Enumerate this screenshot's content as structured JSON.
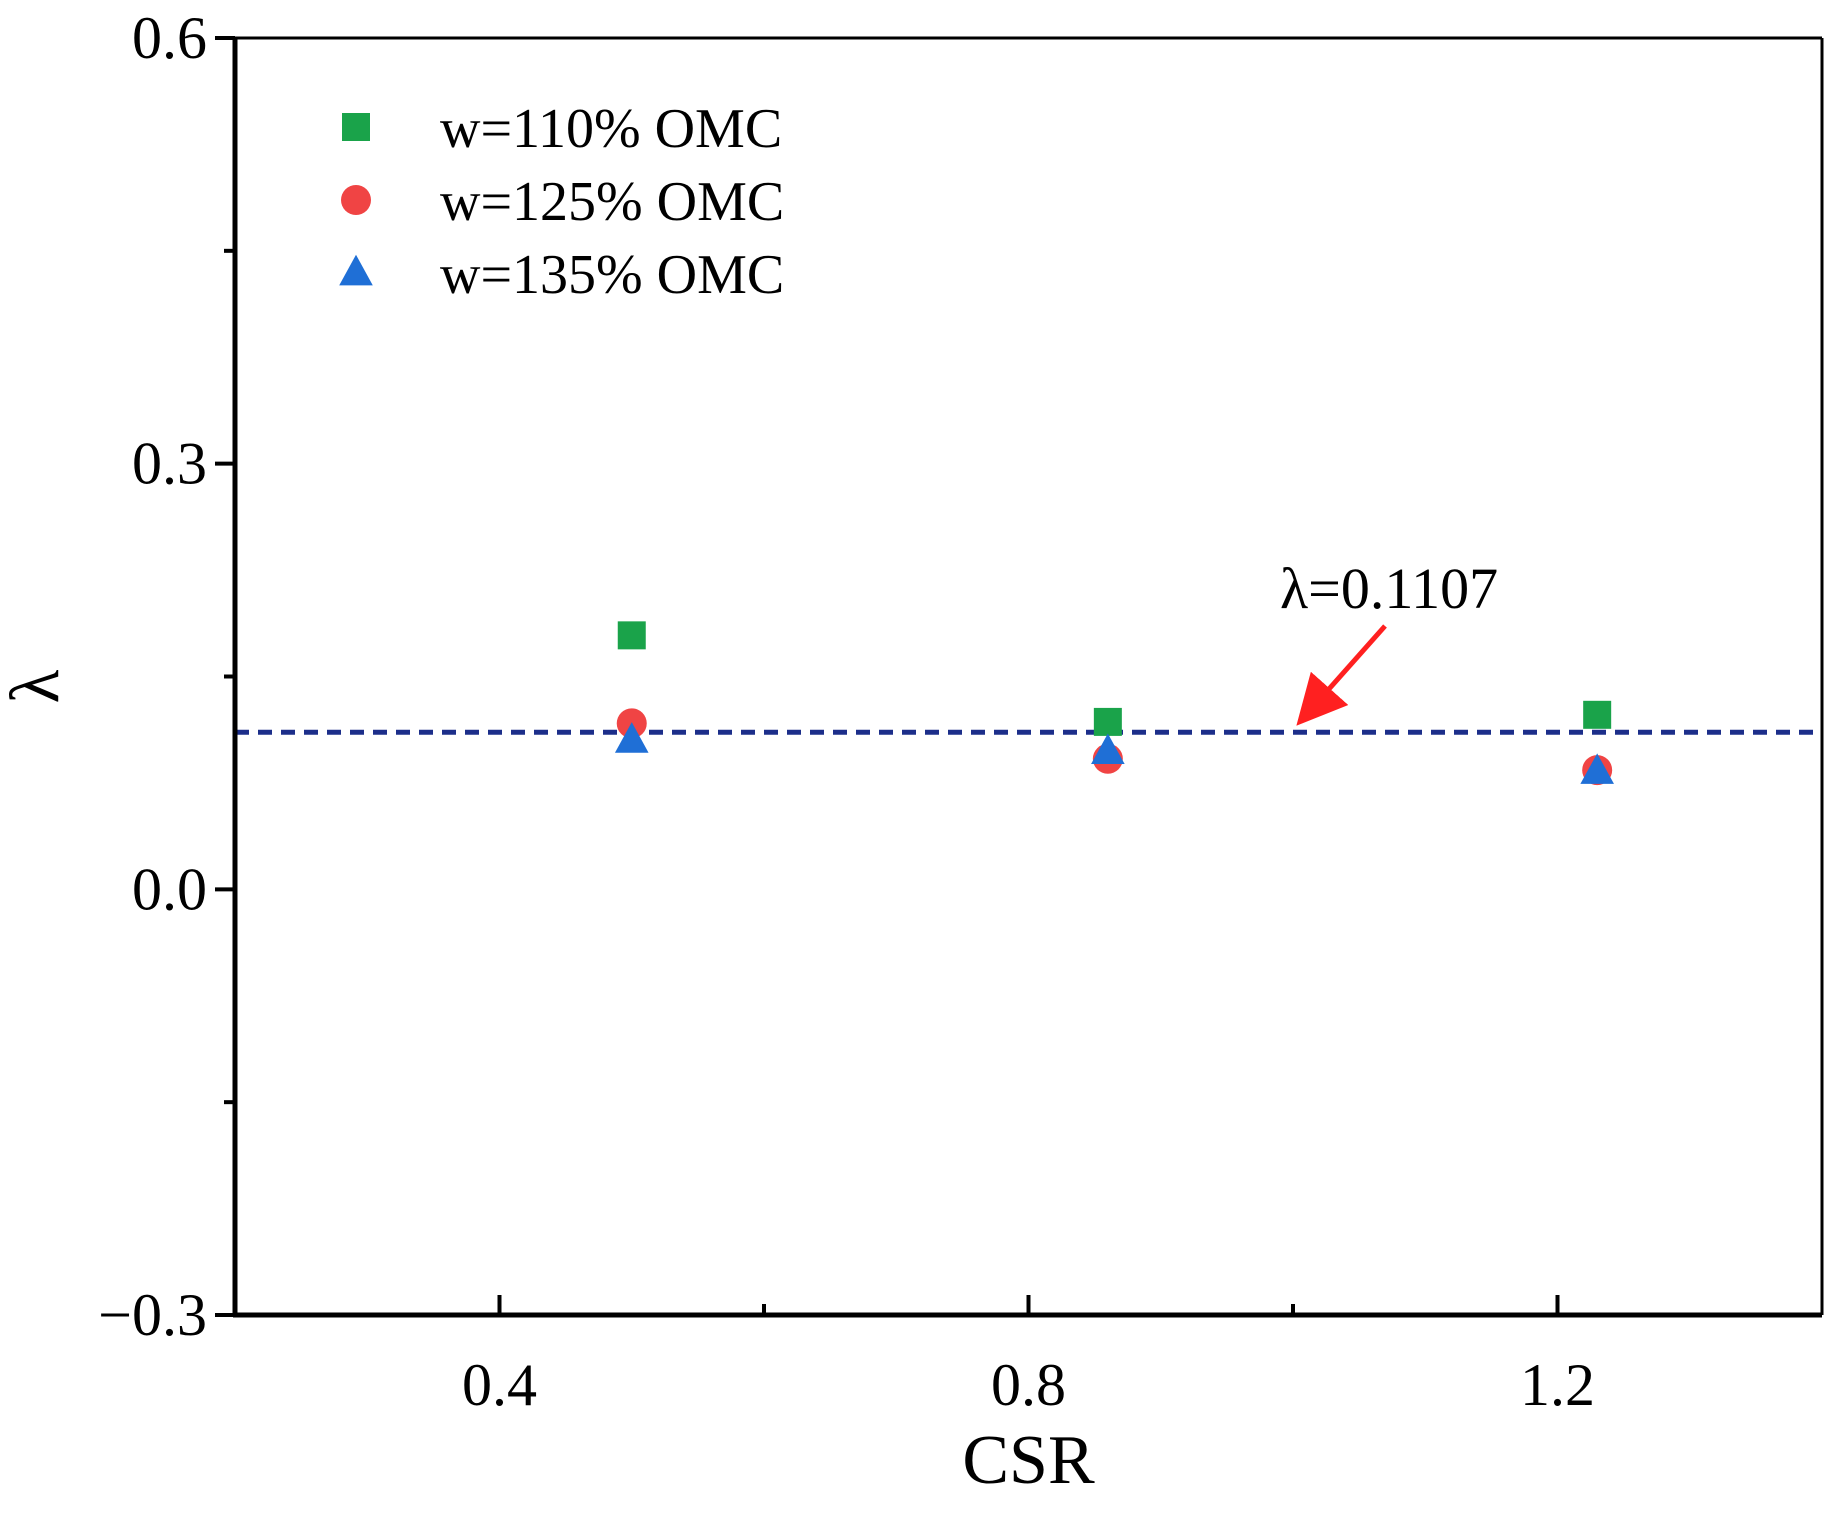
{
  "chart_data": {
    "type": "scatter",
    "xlabel": "CSR",
    "ylabel": "λ",
    "xlim": [
      0.2,
      1.4
    ],
    "ylim": [
      -0.3,
      0.6
    ],
    "x_ticks": [
      {
        "value": 0.4,
        "label": "0.4"
      },
      {
        "value": 0.8,
        "label": "0.8"
      },
      {
        "value": 1.2,
        "label": "1.2"
      }
    ],
    "x_minor_ticks": [
      0.6,
      1.0
    ],
    "y_ticks": [
      {
        "value": -0.3,
        "label": "−0.3"
      },
      {
        "value": 0.0,
        "label": "0.0"
      },
      {
        "value": 0.3,
        "label": "0.3"
      },
      {
        "value": 0.6,
        "label": "0.6"
      }
    ],
    "y_minor_ticks": [
      -0.15,
      0.15,
      0.45
    ],
    "grid": false,
    "legend_position": "top-left",
    "series": [
      {
        "name": "w=110% OMC",
        "marker": "square",
        "color": "#1aa34a",
        "x": [
          0.5,
          0.86,
          1.23
        ],
        "y": [
          0.179,
          0.118,
          0.123
        ]
      },
      {
        "name": "w=125% OMC",
        "marker": "circle",
        "color": "#f04444",
        "x": [
          0.5,
          0.86,
          1.23
        ],
        "y": [
          0.117,
          0.092,
          0.084
        ]
      },
      {
        "name": "w=135% OMC",
        "marker": "triangle",
        "color": "#1f6fd6",
        "x": [
          0.5,
          0.86,
          1.23
        ],
        "y": [
          0.105,
          0.097,
          0.083
        ]
      }
    ],
    "reference_line": {
      "y": 0.1107,
      "style": "dashed",
      "color": "#1c2e8a"
    },
    "annotation": {
      "text": "λ=0.1107",
      "arrow_to": {
        "x": 1.0,
        "y": 0.1107
      },
      "arrow_color": "#ff2020"
    }
  }
}
